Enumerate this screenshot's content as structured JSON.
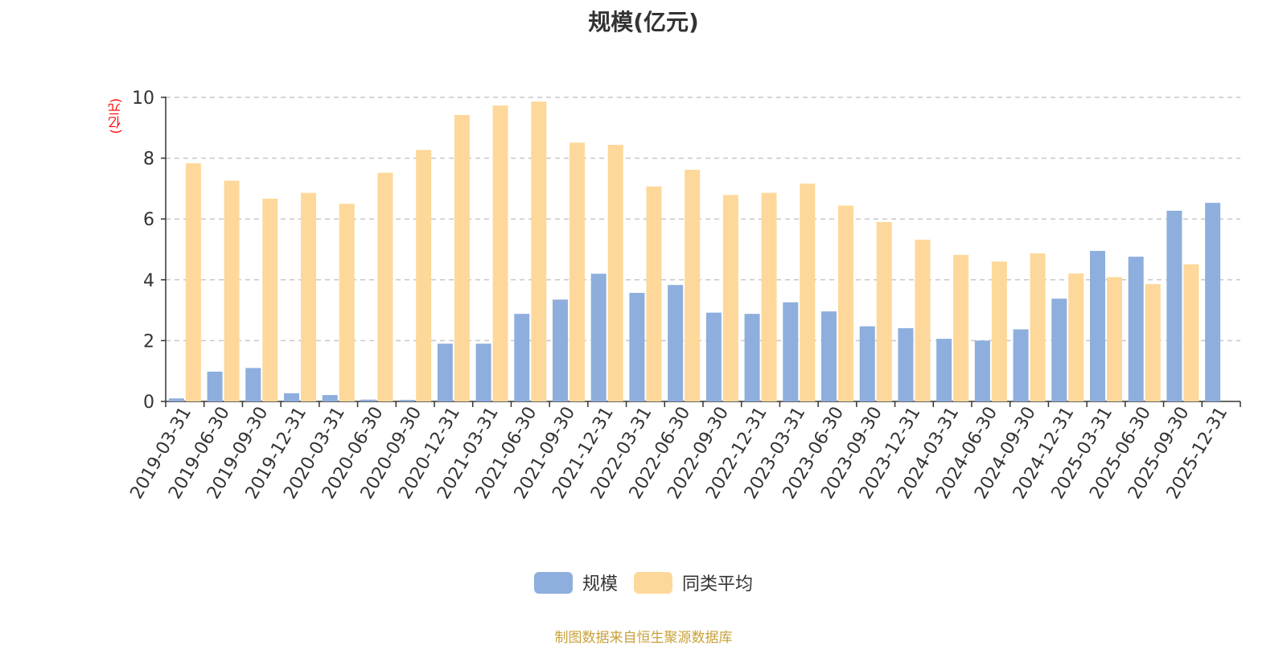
{
  "chart_data": {
    "type": "bar",
    "title": "规模(亿元)",
    "ylabel": "(亿元)",
    "ylim": [
      0,
      10
    ],
    "yticks": [
      0,
      2,
      4,
      6,
      8,
      10
    ],
    "grid": true,
    "legend_position": "bottom-center",
    "categories": [
      "2019-03-31",
      "2019-06-30",
      "2019-09-30",
      "2019-12-31",
      "2020-03-31",
      "2020-06-30",
      "2020-09-30",
      "2020-12-31",
      "2021-03-31",
      "2021-06-30",
      "2021-09-30",
      "2021-12-31",
      "2022-03-31",
      "2022-06-30",
      "2022-09-30",
      "2022-12-31",
      "2023-03-31",
      "2023-06-30",
      "2023-09-30",
      "2023-12-31",
      "2024-03-31",
      "2024-06-30",
      "2024-09-30",
      "2024-12-31",
      "2025-03-31",
      "2025-06-30",
      "2025-09-30",
      "2025-12-31"
    ],
    "series": [
      {
        "name": "规模",
        "color": "#8eaedd",
        "values": [
          0.1,
          0.98,
          1.1,
          0.27,
          0.21,
          0.06,
          0.05,
          1.9,
          1.9,
          2.88,
          3.35,
          4.2,
          3.57,
          3.83,
          2.92,
          2.88,
          3.26,
          2.96,
          2.47,
          2.41,
          2.06,
          2.0,
          2.37,
          3.38,
          4.95,
          4.76,
          6.27,
          6.53
        ]
      },
      {
        "name": "同类平均",
        "color": "#fed89a",
        "values": [
          7.83,
          7.26,
          6.67,
          6.86,
          6.5,
          7.52,
          8.27,
          9.42,
          9.73,
          9.86,
          8.51,
          8.44,
          7.07,
          7.62,
          6.79,
          6.86,
          7.16,
          6.44,
          5.9,
          5.32,
          4.82,
          4.6,
          4.87,
          4.21,
          4.09,
          3.86,
          4.51,
          null
        ]
      }
    ]
  },
  "source_text": "制图数据来自恒生聚源数据库"
}
